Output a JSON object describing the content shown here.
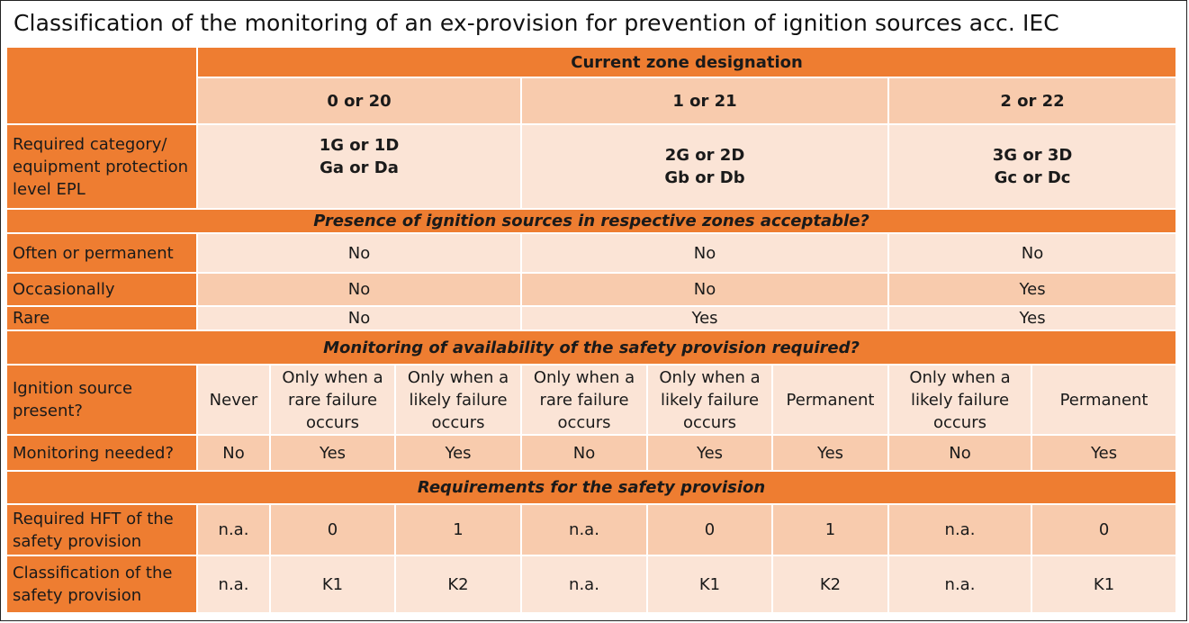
{
  "title": "Classification of the monitoring of an ex-provision for prevention of ignition sources acc. IEC",
  "zone_header": "Current zone designation",
  "zones": [
    "0 or 20",
    "1 or 21",
    "2 or 22"
  ],
  "epl": {
    "label": "Required category/ equipment protection level EPL",
    "z0": {
      "l1": "1G or 1D",
      "l2": "Ga or Da"
    },
    "z1": {
      "l1": "2G or 2D",
      "l2": "Gb or Db"
    },
    "z2": {
      "l1": "3G or 3D",
      "l2": "Gc or Dc"
    }
  },
  "presence": {
    "header": "Presence of ignition sources in respective zones acceptable?",
    "rows": [
      {
        "label": "Often or permanent",
        "values": [
          "No",
          "No",
          "No"
        ]
      },
      {
        "label": "Occasionally",
        "values": [
          "No",
          "No",
          "Yes"
        ]
      },
      {
        "label": "Rare",
        "values": [
          "No",
          "Yes",
          "Yes"
        ]
      }
    ]
  },
  "monitoring": {
    "header": "Monitoring of availability of the safety provision required?",
    "source_label": "Ignition source present?",
    "source_values": [
      "Never",
      "Only when a rare failure occurs",
      "Only when a likely failure occurs",
      "Only when a rare failure occurs",
      "Only when a likely failure occurs",
      "Permanent",
      "Only when a likely failure occurs",
      "Permanent"
    ],
    "needed_label": "Monitoring needed?",
    "needed_values": [
      "No",
      "Yes",
      "Yes",
      "No",
      "Yes",
      "Yes",
      "No",
      "Yes"
    ]
  },
  "requirements": {
    "header": "Requirements for the safety provision",
    "hft_label": "Required HFT of the safety provision",
    "hft_values": [
      "n.a.",
      "0",
      "1",
      "n.a.",
      "0",
      "1",
      "n.a.",
      "0"
    ],
    "class_label": "Classification of the safety provision",
    "class_values": [
      "n.a.",
      "K1",
      "K2",
      "n.a.",
      "K1",
      "K2",
      "n.a.",
      "K1"
    ]
  }
}
